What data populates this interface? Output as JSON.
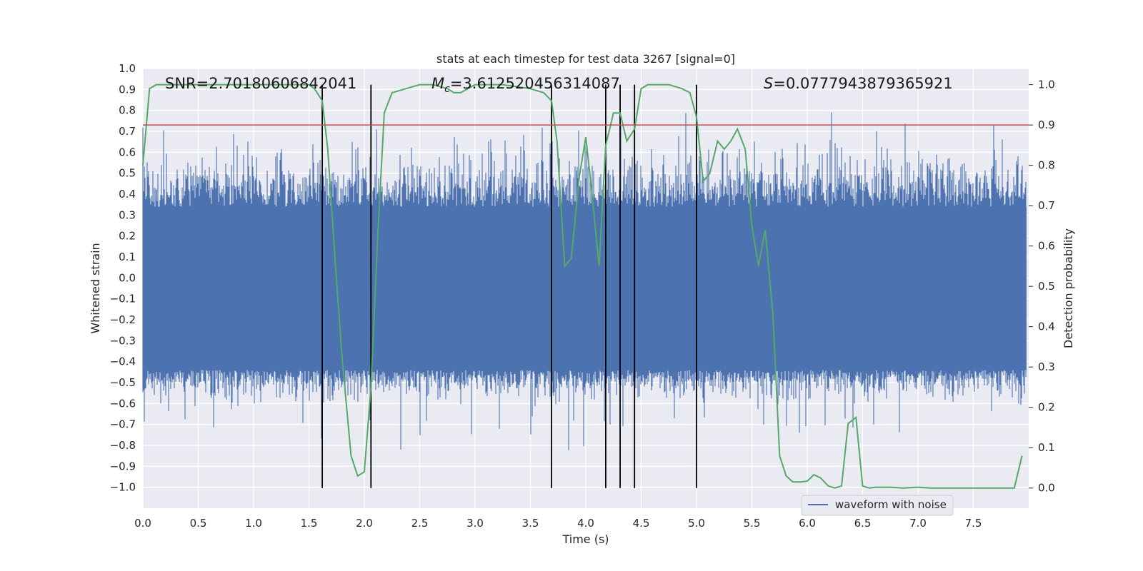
{
  "chart_data": {
    "type": "line",
    "title": "stats at each timestep for test data 3267 [signal=0]",
    "xlabel": "Time (s)",
    "ylabel": "Whitened strain",
    "y2label": "Detection probability",
    "xlim": [
      0.0,
      8.0
    ],
    "ylim": [
      -1.1,
      1.0
    ],
    "y2lim": [
      -0.05,
      1.04
    ],
    "xticks": [
      "0.0",
      "0.5",
      "1.0",
      "1.5",
      "2.0",
      "2.5",
      "3.0",
      "3.5",
      "4.0",
      "4.5",
      "5.0",
      "5.5",
      "6.0",
      "6.5",
      "7.0",
      "7.5"
    ],
    "yticks": [
      "1.0",
      "0.9",
      "0.8",
      "0.7",
      "0.6",
      "0.5",
      "0.4",
      "0.3",
      "0.2",
      "0.1",
      "0.0",
      "−0.1",
      "−0.2",
      "−0.3",
      "−0.4",
      "−0.5",
      "−0.6",
      "−0.7",
      "−0.8",
      "−0.9",
      "−1.0"
    ],
    "y2ticks": [
      "1.0",
      "0.9",
      "0.8",
      "0.7",
      "0.6",
      "0.5",
      "0.4",
      "0.3",
      "0.2",
      "0.1",
      "0.0"
    ],
    "annotations": {
      "snr": "SNR=2.70180606842041",
      "mc_symbol": "M",
      "mc_sub": "c",
      "mc_value": "=3.612520456314087",
      "s_symbol": "S",
      "s_value": "=0.0777943879365921"
    },
    "legend": {
      "label": "waveform with noise",
      "location": "lower-right"
    },
    "threshold": 0.9,
    "detection_marks_x": [
      1.62,
      2.06,
      3.69,
      4.18,
      4.31,
      4.44,
      5.0
    ],
    "series": [
      {
        "name": "waveform with noise",
        "color": "#4c72b0",
        "x_range": [
          0.0,
          7.98
        ],
        "band_core": [
          -0.44,
          0.34
        ],
        "envelope_typical": [
          -0.6,
          0.65
        ],
        "extreme_max": 0.92,
        "extreme_min": -0.96
      },
      {
        "name": "detection probability",
        "color": "#55a868",
        "x": [
          0.0,
          0.06,
          0.12,
          0.25,
          0.5,
          0.75,
          1.0,
          1.25,
          1.5,
          1.55,
          1.62,
          1.67,
          1.74,
          1.8,
          1.88,
          1.94,
          2.0,
          2.06,
          2.12,
          2.18,
          2.25,
          2.5,
          2.62,
          2.75,
          2.81,
          2.87,
          3.0,
          3.25,
          3.5,
          3.62,
          3.69,
          3.74,
          3.81,
          3.87,
          3.94,
          4.0,
          4.06,
          4.12,
          4.18,
          4.25,
          4.31,
          4.37,
          4.44,
          4.5,
          4.56,
          4.62,
          4.75,
          4.87,
          4.94,
          5.0,
          5.06,
          5.12,
          5.19,
          5.25,
          5.31,
          5.37,
          5.44,
          5.5,
          5.56,
          5.62,
          5.69,
          5.75,
          5.81,
          5.87,
          5.94,
          6.0,
          6.06,
          6.12,
          6.19,
          6.25,
          6.31,
          6.37,
          6.44,
          6.5,
          6.56,
          6.62,
          6.75,
          6.87,
          7.0,
          7.12,
          7.25,
          7.5,
          7.75,
          7.87,
          7.94
        ],
        "y": [
          0.8,
          0.99,
          1.0,
          1.0,
          1.0,
          1.0,
          1.0,
          1.0,
          1.0,
          0.99,
          0.96,
          0.84,
          0.55,
          0.32,
          0.08,
          0.03,
          0.04,
          0.25,
          0.62,
          0.93,
          0.98,
          1.0,
          1.0,
          0.99,
          0.98,
          0.98,
          1.0,
          1.0,
          0.99,
          0.98,
          0.96,
          0.86,
          0.55,
          0.57,
          0.77,
          0.87,
          0.72,
          0.55,
          0.85,
          0.93,
          0.93,
          0.86,
          0.89,
          0.99,
          1.0,
          1.0,
          1.0,
          0.99,
          0.98,
          0.92,
          0.76,
          0.78,
          0.86,
          0.84,
          0.86,
          0.89,
          0.84,
          0.65,
          0.55,
          0.64,
          0.43,
          0.08,
          0.03,
          0.015,
          0.015,
          0.017,
          0.033,
          0.025,
          0.005,
          0.0,
          0.005,
          0.16,
          0.175,
          0.005,
          0.0,
          0.002,
          0.002,
          0.0,
          0.002,
          0.0,
          0.0,
          0.0,
          0.0,
          0.0,
          0.08
        ]
      },
      {
        "name": "threshold",
        "color": "#c44e52",
        "y": [
          0.9,
          0.9
        ]
      }
    ]
  }
}
